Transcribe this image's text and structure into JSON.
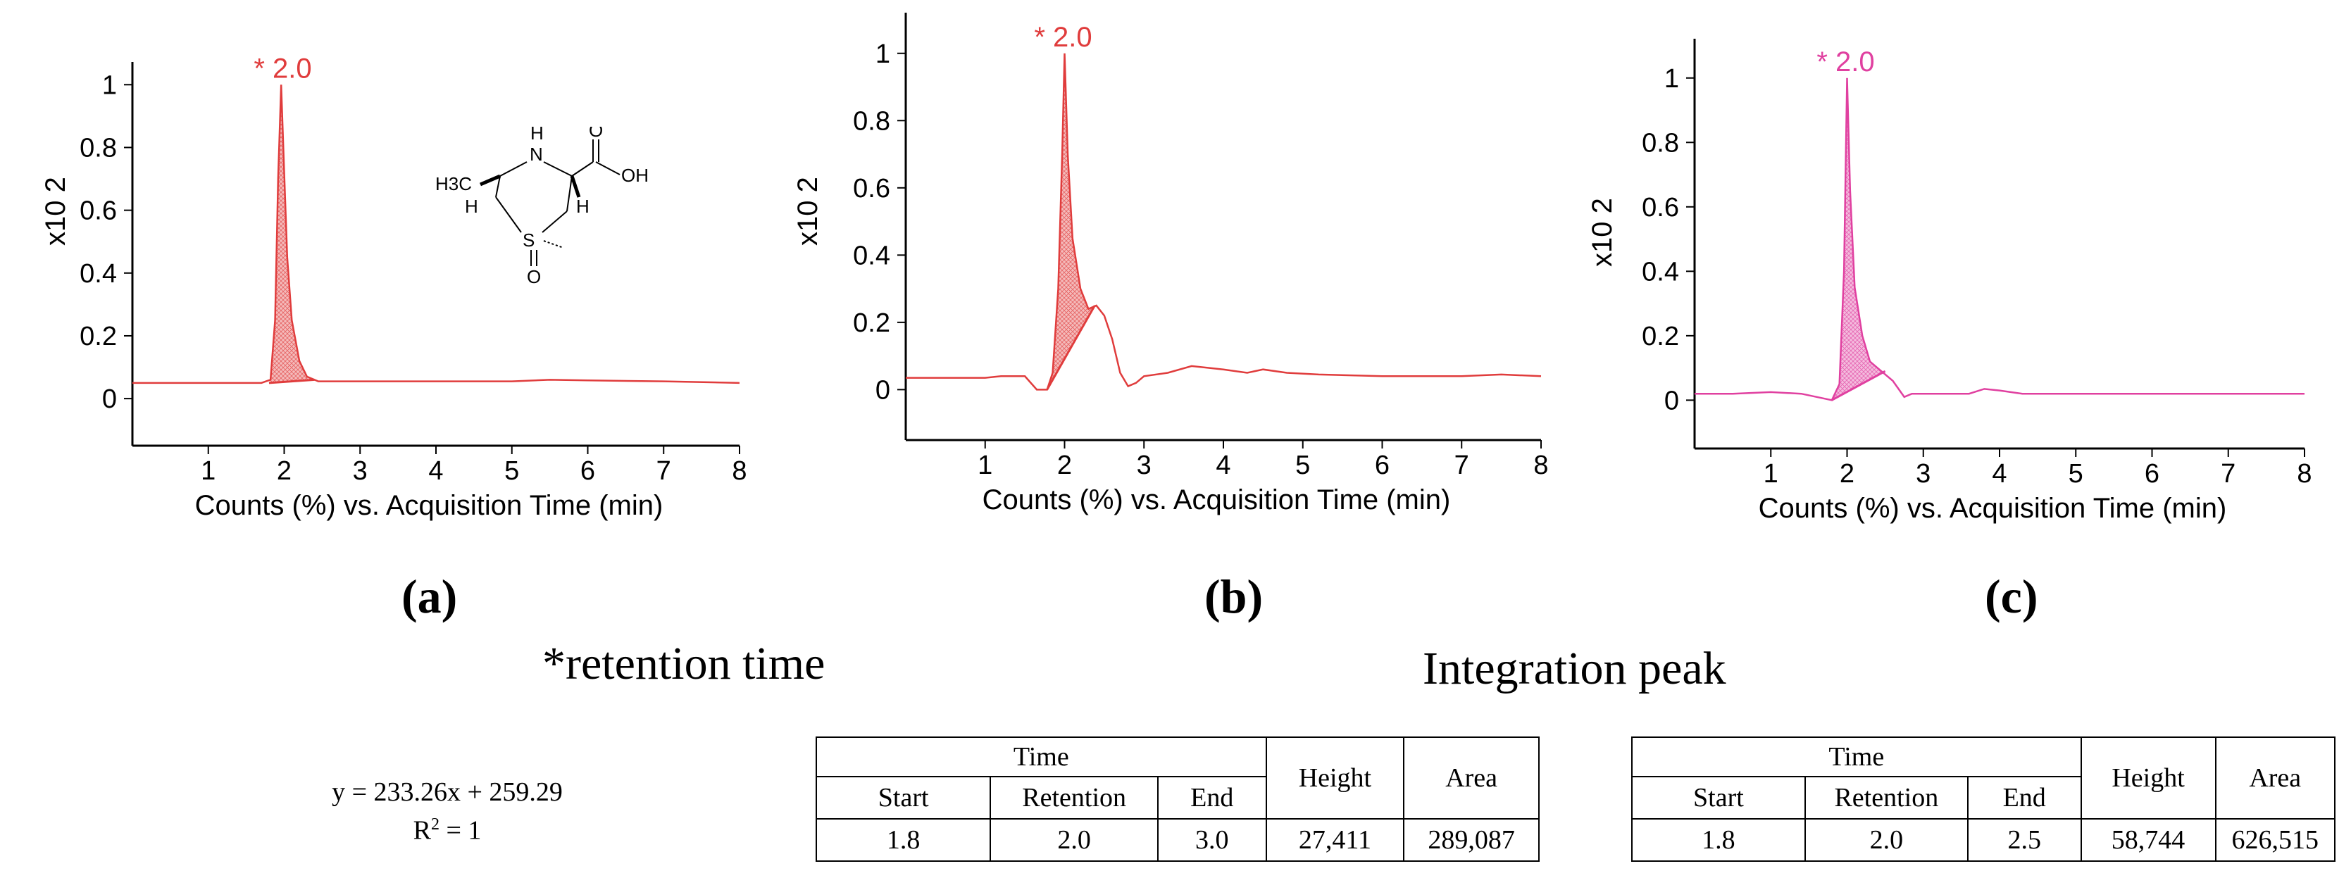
{
  "chart_data": [
    {
      "type": "line",
      "panel_label": "a",
      "color": "#e03c3c",
      "peak_label": "* 2.0",
      "y_axis_label": "x10 2",
      "xlabel": "Counts (%) vs. Acquisition Time (min)",
      "xlim": [
        0,
        8
      ],
      "ylim": [
        -0.15,
        1.05
      ],
      "x_ticks": [
        "1",
        "2",
        "3",
        "4",
        "5",
        "6",
        "7",
        "8"
      ],
      "y_ticks": [
        "0",
        "0.2",
        "0.4",
        "0.6",
        "0.8",
        "1"
      ],
      "trace": [
        [
          0,
          0.05
        ],
        [
          0.6,
          0.05
        ],
        [
          1.2,
          0.05
        ],
        [
          1.7,
          0.05
        ],
        [
          1.82,
          0.06
        ],
        [
          1.88,
          0.25
        ],
        [
          1.92,
          0.7
        ],
        [
          1.96,
          1.0
        ],
        [
          2.0,
          0.72
        ],
        [
          2.04,
          0.45
        ],
        [
          2.1,
          0.25
        ],
        [
          2.2,
          0.12
        ],
        [
          2.3,
          0.07
        ],
        [
          2.45,
          0.055
        ],
        [
          3,
          0.055
        ],
        [
          4,
          0.055
        ],
        [
          5,
          0.055
        ],
        [
          5.5,
          0.06
        ],
        [
          6,
          0.058
        ],
        [
          7,
          0.055
        ],
        [
          8,
          0.05
        ]
      ],
      "fill": {
        "start": 1.8,
        "end": 2.4,
        "base_start": 0.05,
        "base_end": 0.06
      }
    },
    {
      "type": "line",
      "panel_label": "b",
      "color": "#e03c3c",
      "peak_label": "* 2.0",
      "y_axis_label": "x10 2",
      "xlabel": "Counts (%) vs. Acquisition Time (min)",
      "xlim": [
        0,
        8
      ],
      "ylim": [
        -0.15,
        1.1
      ],
      "x_ticks": [
        "1",
        "2",
        "3",
        "4",
        "5",
        "6",
        "7",
        "8"
      ],
      "y_ticks": [
        "0",
        "0.2",
        "0.4",
        "0.6",
        "0.8",
        "1"
      ],
      "trace": [
        [
          0,
          0.035
        ],
        [
          0.5,
          0.035
        ],
        [
          1.0,
          0.035
        ],
        [
          1.2,
          0.04
        ],
        [
          1.5,
          0.04
        ],
        [
          1.65,
          0.0
        ],
        [
          1.78,
          0.0
        ],
        [
          1.85,
          0.05
        ],
        [
          1.92,
          0.3
        ],
        [
          1.97,
          0.7
        ],
        [
          2.0,
          1.0
        ],
        [
          2.04,
          0.7
        ],
        [
          2.1,
          0.45
        ],
        [
          2.2,
          0.3
        ],
        [
          2.3,
          0.24
        ],
        [
          2.4,
          0.25
        ],
        [
          2.5,
          0.22
        ],
        [
          2.6,
          0.15
        ],
        [
          2.7,
          0.05
        ],
        [
          2.8,
          0.01
        ],
        [
          2.9,
          0.02
        ],
        [
          3.0,
          0.04
        ],
        [
          3.3,
          0.05
        ],
        [
          3.6,
          0.07
        ],
        [
          4.0,
          0.06
        ],
        [
          4.3,
          0.05
        ],
        [
          4.5,
          0.06
        ],
        [
          4.8,
          0.05
        ],
        [
          5.2,
          0.045
        ],
        [
          6.0,
          0.04
        ],
        [
          7.0,
          0.04
        ],
        [
          7.5,
          0.045
        ],
        [
          8,
          0.04
        ]
      ],
      "fill": {
        "start": 1.78,
        "end": 2.38,
        "base_start": 0.0,
        "base_end": 0.25
      }
    },
    {
      "type": "line",
      "panel_label": "c",
      "color": "#e040a0",
      "peak_label": "* 2.0",
      "y_axis_label": "x10 2",
      "xlabel": "Counts (%) vs. Acquisition Time (min)",
      "xlim": [
        0,
        8
      ],
      "ylim": [
        -0.15,
        1.1
      ],
      "x_ticks": [
        "1",
        "2",
        "3",
        "4",
        "5",
        "6",
        "7",
        "8"
      ],
      "y_ticks": [
        "0",
        "0.2",
        "0.4",
        "0.6",
        "0.8",
        "1"
      ],
      "trace": [
        [
          0,
          0.02
        ],
        [
          0.5,
          0.02
        ],
        [
          1.0,
          0.025
        ],
        [
          1.4,
          0.02
        ],
        [
          1.8,
          0.0
        ],
        [
          1.9,
          0.05
        ],
        [
          1.96,
          0.4
        ],
        [
          2.0,
          1.0
        ],
        [
          2.04,
          0.65
        ],
        [
          2.1,
          0.35
        ],
        [
          2.2,
          0.2
        ],
        [
          2.3,
          0.12
        ],
        [
          2.45,
          0.09
        ],
        [
          2.6,
          0.06
        ],
        [
          2.75,
          0.01
        ],
        [
          2.85,
          0.02
        ],
        [
          3.0,
          0.02
        ],
        [
          3.6,
          0.02
        ],
        [
          3.8,
          0.035
        ],
        [
          4.0,
          0.03
        ],
        [
          4.3,
          0.02
        ],
        [
          6,
          0.02
        ],
        [
          8,
          0.02
        ]
      ],
      "fill": {
        "start": 1.8,
        "end": 2.5,
        "base_start": 0.0,
        "base_end": 0.09
      }
    }
  ],
  "captions": {
    "a": "(a)",
    "b": "(b)",
    "c": "(c)"
  },
  "notes": {
    "retention": "*retention  time",
    "integration": "Integration peak"
  },
  "molecule": {
    "h3c": "H3C",
    "n": "N",
    "h_n": "H",
    "o_top": "O",
    "oh": "OH",
    "h_left": "H",
    "h_right": "H",
    "s": "S",
    "o_bottom": "O"
  },
  "calibration": {
    "equation": "y = 233.26x + 259.29",
    "r2_label": "R",
    "r2_sup": "2",
    "r2_value": " = 1"
  },
  "tables": [
    {
      "headers": {
        "time": "Time",
        "start": "Start",
        "retention": "Retention",
        "end": "End",
        "height": "Height",
        "area": "Area"
      },
      "row": {
        "start": "1.8",
        "retention": "2.0",
        "end": "3.0",
        "height": "27,411",
        "area": "289,087"
      }
    },
    {
      "headers": {
        "time": "Time",
        "start": "Start",
        "retention": "Retention",
        "end": "End",
        "height": "Height",
        "area": "Area"
      },
      "row": {
        "start": "1.8",
        "retention": "2.0",
        "end": "2.5",
        "height": "58,744",
        "area": "626,515"
      }
    }
  ]
}
